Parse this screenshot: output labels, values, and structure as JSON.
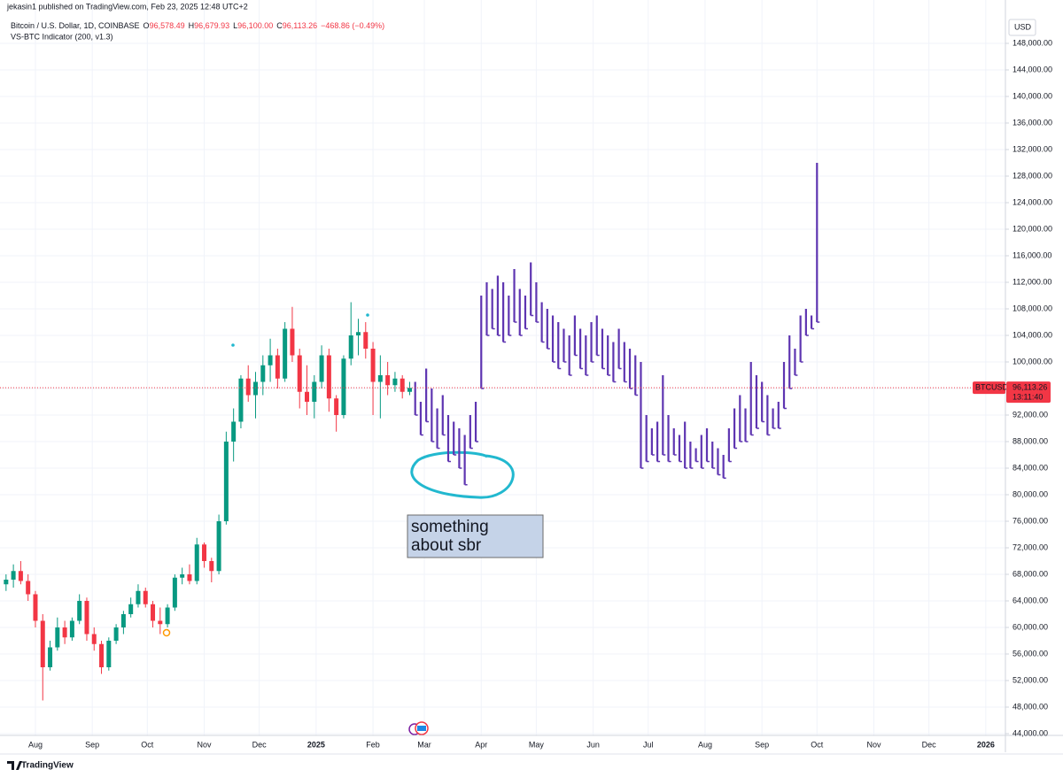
{
  "header": {
    "publisher": "jekasin1 published on TradingView.com, Feb 23, 2025 12:48 UTC+2",
    "symbol": "Bitcoin / U.S. Dollar, 1D, COINBASE",
    "ohlc": [
      {
        "key": "O",
        "value": "96,578.49"
      },
      {
        "key": "H",
        "value": "96,679.93"
      },
      {
        "key": "L",
        "value": "96,100.00"
      },
      {
        "key": "C",
        "value": "96,113.26"
      }
    ],
    "change": "−468.86 (−0.49%)",
    "indicator": "VS-BTC Indicator (200, v1.3)"
  },
  "footer": {
    "brand": "TradingView"
  },
  "chart_data": {
    "type": "candlestick",
    "currency": "USD",
    "up_color": "#089981",
    "down_color": "#f23645",
    "projection_color": "#5e35b1",
    "grid": true,
    "xlim": [
      -19.3,
      528.7
    ],
    "xticks": [
      {
        "value": 0,
        "label": "Aug"
      },
      {
        "value": 31,
        "label": "Sep"
      },
      {
        "value": 61,
        "label": "Oct"
      },
      {
        "value": 92,
        "label": "Nov"
      },
      {
        "value": 122,
        "label": "Dec"
      },
      {
        "value": 153,
        "label": "2025"
      },
      {
        "value": 184,
        "label": "Feb"
      },
      {
        "value": 212,
        "label": "Mar"
      },
      {
        "value": 243,
        "label": "Apr"
      },
      {
        "value": 273,
        "label": "May"
      },
      {
        "value": 304,
        "label": "Jun"
      },
      {
        "value": 334,
        "label": "Jul"
      },
      {
        "value": 365,
        "label": "Aug"
      },
      {
        "value": 396,
        "label": "Sep"
      },
      {
        "value": 426,
        "label": "Oct"
      },
      {
        "value": 457,
        "label": "Nov"
      },
      {
        "value": 487,
        "label": "Dec"
      },
      {
        "value": 518,
        "label": "2026"
      }
    ],
    "ylim": [
      42666,
      149333
    ],
    "yticks": [
      {
        "value": 44000,
        "label": "44,000.00"
      },
      {
        "value": 48000,
        "label": "48,000.00"
      },
      {
        "value": 52000,
        "label": "52,000.00"
      },
      {
        "value": 56000,
        "label": "56,000.00"
      },
      {
        "value": 60000,
        "label": "60,000.00"
      },
      {
        "value": 64000,
        "label": "64,000.00"
      },
      {
        "value": 68000,
        "label": "68,000.00"
      },
      {
        "value": 72000,
        "label": "72,000.00"
      },
      {
        "value": 76000,
        "label": "76,000.00"
      },
      {
        "value": 80000,
        "label": "80,000.00"
      },
      {
        "value": 84000,
        "label": "84,000.00"
      },
      {
        "value": 88000,
        "label": "88,000.00"
      },
      {
        "value": 92000,
        "label": "92,000.00"
      },
      {
        "value": 96000,
        "label": "96,000.00"
      },
      {
        "value": 100000,
        "label": "100,000.00"
      },
      {
        "value": 104000,
        "label": "104,000.00"
      },
      {
        "value": 108000,
        "label": "108,000.00"
      },
      {
        "value": 112000,
        "label": "112,000.00"
      },
      {
        "value": 116000,
        "label": "116,000.00"
      },
      {
        "value": 120000,
        "label": "120,000.00"
      },
      {
        "value": 124000,
        "label": "124,000.00"
      },
      {
        "value": 128000,
        "label": "128,000.00"
      },
      {
        "value": 132000,
        "label": "132,000.00"
      },
      {
        "value": 136000,
        "label": "136,000.00"
      },
      {
        "value": 140000,
        "label": "140,000.00"
      },
      {
        "value": 144000,
        "label": "144,000.00"
      },
      {
        "value": 148000,
        "label": "148,000.00"
      }
    ],
    "candles": {
      "x": [
        -16,
        -12,
        -8,
        -4,
        0,
        4,
        8,
        12,
        16,
        20,
        24,
        28,
        32,
        36,
        40,
        44,
        48,
        52,
        56,
        60,
        64,
        68,
        72,
        76,
        80,
        84,
        88,
        92,
        96,
        100,
        104,
        108,
        112,
        116,
        120,
        124,
        128,
        132,
        136,
        140,
        144,
        148,
        152,
        156,
        160,
        164,
        168,
        172,
        176,
        180,
        184,
        188,
        192,
        196,
        200,
        204
      ],
      "open": [
        66500,
        67200,
        68500,
        67000,
        65000,
        61000,
        54000,
        57000,
        60000,
        58500,
        61000,
        64000,
        59000,
        57500,
        54000,
        58000,
        60000,
        62000,
        63500,
        65500,
        63500,
        61000,
        60500,
        63000,
        67500,
        68000,
        67000,
        72500,
        70000,
        68500,
        76000,
        88000,
        91000,
        97500,
        95000,
        97000,
        99500,
        101000,
        97500,
        105000,
        101000,
        95500,
        94000,
        97000,
        101000,
        94500,
        92000,
        100500,
        104000,
        104500,
        102000,
        97000,
        98000,
        96500,
        97500,
        95500
      ],
      "high": [
        68000,
        69500,
        70000,
        68000,
        65500,
        62000,
        58000,
        61500,
        61000,
        61500,
        65000,
        64500,
        60000,
        58000,
        58500,
        60500,
        62500,
        64500,
        66500,
        66000,
        64000,
        63000,
        63500,
        68000,
        69000,
        69500,
        73500,
        72800,
        70500,
        77000,
        89500,
        93000,
        98000,
        99500,
        98500,
        101000,
        103500,
        102000,
        106000,
        108300,
        102000,
        99500,
        98000,
        102500,
        102000,
        95000,
        101000,
        109000,
        106500,
        106000,
        103000,
        101000,
        100000,
        98500,
        98000,
        97000
      ],
      "low": [
        65500,
        66000,
        66500,
        64000,
        60000,
        49000,
        53500,
        56500,
        57500,
        58000,
        60500,
        58000,
        56500,
        53000,
        53500,
        57500,
        59000,
        61500,
        63000,
        63000,
        60000,
        59000,
        60000,
        62500,
        66500,
        66500,
        66500,
        69000,
        66800,
        68000,
        75500,
        85000,
        90000,
        94000,
        91500,
        95000,
        97000,
        96000,
        97000,
        100000,
        93000,
        92000,
        91500,
        96000,
        92500,
        89500,
        91500,
        99500,
        101000,
        100500,
        92000,
        91500,
        95000,
        95500,
        94500,
        95000
      ],
      "close": [
        67200,
        68500,
        67000,
        65000,
        61000,
        54000,
        57000,
        60000,
        58500,
        61000,
        64000,
        59000,
        57500,
        54000,
        58000,
        60000,
        62000,
        63500,
        65500,
        63500,
        61000,
        60500,
        63000,
        67500,
        68000,
        67000,
        72500,
        70000,
        68500,
        76000,
        88000,
        91000,
        97500,
        95000,
        97000,
        99500,
        101000,
        97500,
        105000,
        101000,
        95500,
        94000,
        97000,
        101000,
        94500,
        92000,
        100500,
        104000,
        104500,
        102000,
        97000,
        98000,
        96500,
        97500,
        95500,
        96100
      ]
    },
    "projection": {
      "x": [
        207,
        210,
        213,
        216,
        219,
        222,
        225,
        228,
        231,
        234,
        237,
        240,
        243,
        246,
        249,
        252,
        255,
        258,
        261,
        264,
        267,
        270,
        273,
        276,
        279,
        282,
        285,
        288,
        291,
        294,
        297,
        300,
        303,
        306,
        309,
        312,
        315,
        318,
        321,
        324,
        327,
        330,
        333,
        336,
        339,
        342,
        345,
        348,
        351,
        354,
        357,
        360,
        363,
        366,
        369,
        372,
        375,
        378,
        381,
        384,
        387,
        390,
        393,
        396,
        399,
        402,
        405,
        408,
        411,
        414,
        417,
        420,
        423,
        426
      ],
      "high": [
        97000,
        94000,
        99000,
        96000,
        93000,
        95000,
        92000,
        91000,
        90000,
        89000,
        92000,
        94000,
        110000,
        112000,
        111000,
        113000,
        112000,
        110000,
        114000,
        111000,
        110000,
        115000,
        112000,
        109000,
        108000,
        107000,
        106000,
        105000,
        104000,
        107000,
        105000,
        104000,
        106000,
        107000,
        105000,
        104000,
        103000,
        105000,
        103000,
        102000,
        101000,
        100000,
        92000,
        90000,
        91000,
        98000,
        92000,
        90000,
        89000,
        91000,
        88000,
        87000,
        89000,
        90000,
        88000,
        87000,
        86000,
        90000,
        93000,
        95000,
        93000,
        100000,
        98000,
        97000,
        95000,
        93000,
        94000,
        100000,
        104000,
        102000,
        107000,
        108000,
        107000,
        130000
      ],
      "low": [
        92000,
        89000,
        91000,
        88000,
        87000,
        89000,
        85000,
        86000,
        84000,
        81500,
        87000,
        88000,
        96000,
        104000,
        105000,
        104000,
        103000,
        104000,
        106000,
        104000,
        105000,
        107000,
        106000,
        103000,
        102000,
        100000,
        99000,
        100000,
        98000,
        101000,
        99000,
        98000,
        100000,
        101000,
        99000,
        98000,
        97000,
        99000,
        97000,
        96000,
        95000,
        84000,
        85000,
        86000,
        85000,
        86000,
        85000,
        86000,
        85000,
        84000,
        84000,
        85000,
        84000,
        85000,
        84000,
        83000,
        82500,
        85000,
        87000,
        88000,
        88000,
        89000,
        90000,
        91000,
        89000,
        90000,
        90000,
        93000,
        96000,
        98000,
        100000,
        104000,
        105000,
        106000
      ]
    },
    "last_price": {
      "value": 96113.26,
      "label": "96,113.26"
    },
    "symbol_tag": "BTCUSD",
    "countdown": "13:11:40",
    "annotation": [
      "something",
      "about sbr"
    ]
  }
}
